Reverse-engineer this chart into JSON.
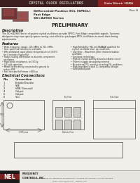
{
  "header_bg": "#3d1f1f",
  "header_text": "CRYSTAL CLOCK OSCILLATORS",
  "header_text_color": "#d0c8c0",
  "data_sheet_label": "Data Sheet: HSBA",
  "rev_text": "Rev: B",
  "subtitle1": "Differential Positive ECL (SPECL)",
  "subtitle2": "Fast Edge",
  "subtitle3": "SD+A2960 Series",
  "preliminary": "PRELIMINARY",
  "desc_title": "Description",
  "desc_lines": [
    "The SD+A2960 Series of quartz crystal oscillators provide SPECL Fast Edge compatible signals. Systems",
    "designers may now specify space-saving, cost-effective packaged PECL oscillators to meet their timing",
    "requirements."
  ],
  "features_title": "Features",
  "features_left": [
    "• Wide frequency range: 125.0MHz to 311.5MHz",
    "• User specified tolerances available",
    "• Will withstand vapor phase temperatures of 250°C",
    "  for 4 minutes (typically)",
    "• Space-saving alternative to discrete component",
    "  oscillators",
    "• High shock resistance, to 1500g",
    "• 3.3 volt operation",
    "• Metal lid electricity connected to ground to",
    "  reduce EMI",
    "• Fast rise and fall times <800 ps"
  ],
  "features_right": [
    "• High Reliability: MIL mil-TBAAAB qualified for",
    "  crystal oscillator start up conditions",
    "• Low Jitter - Waveform jitter characterization",
    "  available",
    "• Overtone technology",
    "• High-Q Crystal activity based oscillator circuit",
    "• Thermo supply decoupling internal",
    "• No external PLL avoids cascading PLL problems",
    "• High-Impedance dual IC-compatible design",
    "• Gold plated pads"
  ],
  "elec_conn_title": "Electrical Connections",
  "pin_col1": "Pin",
  "pin_col2": "Connection",
  "pins": [
    [
      "1",
      "Enable/Disable"
    ],
    [
      "2",
      "VEE"
    ],
    [
      "3",
      "VBB (Ground)"
    ],
    [
      "4",
      "Output"
    ],
    [
      "5",
      "Output"
    ],
    [
      "6",
      "VCC"
    ]
  ],
  "footer_logo_text": "NEL",
  "footer_logo_bg": "#1a1a1a",
  "footer_red_bg": "#7a2020",
  "footer_company": "FREQUENCY\nCONTROLS, INC.",
  "footer_address1": "107 Essex Street, P.O. Box 477, Burlington, WI 53105-0477  La Verne 262-763-3591  FAX 262-763-3068",
  "footer_address2": "Email: controls@nel.com    www.nel.com",
  "bg_color": "#f2eeea",
  "body_bg": "#f2eeea",
  "text_dark": "#222222",
  "ds_label_bg": "#8b2020"
}
